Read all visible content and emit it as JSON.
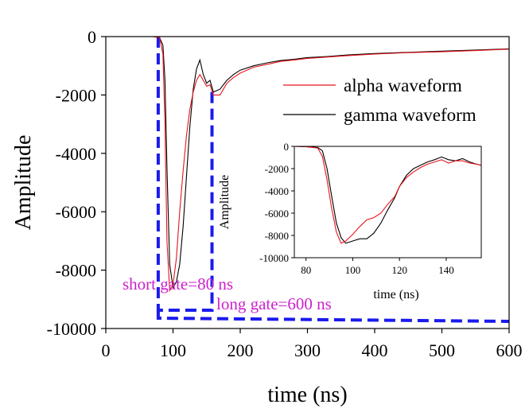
{
  "chart_data": [
    {
      "type": "line",
      "xlabel": "time (ns)",
      "ylabel": "Amplitude",
      "xlim": [
        0,
        600
      ],
      "ylim": [
        -10000,
        0
      ],
      "xticks": [
        "0",
        "100",
        "200",
        "300",
        "400",
        "500",
        "600"
      ],
      "yticks": [
        "0",
        "-2000",
        "-4000",
        "-6000",
        "-8000",
        "-10000"
      ],
      "legend": {
        "placement": "top-right",
        "entries": [
          "alpha waveform",
          "gamma waveform"
        ]
      },
      "series": [
        {
          "name": "alpha waveform",
          "color": "#e8141c",
          "x": [
            0,
            70,
            80,
            85,
            88,
            91,
            95,
            100,
            105,
            110,
            115,
            120,
            125,
            130,
            135,
            140,
            145,
            150,
            155,
            160,
            170,
            180,
            190,
            200,
            220,
            240,
            260,
            280,
            300,
            330,
            360,
            400,
            450,
            500,
            550,
            600
          ],
          "y": [
            0,
            0,
            -30,
            -600,
            -3000,
            -7000,
            -8700,
            -8500,
            -7600,
            -6000,
            -4600,
            -3400,
            -2500,
            -1900,
            -1500,
            -1300,
            -1500,
            -1700,
            -1650,
            -2000,
            -2000,
            -1600,
            -1400,
            -1250,
            -1050,
            -950,
            -850,
            -800,
            -750,
            -700,
            -650,
            -600,
            -550,
            -520,
            -480,
            -430
          ]
        },
        {
          "name": "gamma waveform",
          "color": "#000000",
          "x": [
            0,
            70,
            80,
            85,
            88,
            91,
            95,
            100,
            105,
            110,
            115,
            120,
            125,
            130,
            135,
            140,
            145,
            150,
            155,
            160,
            170,
            180,
            190,
            200,
            220,
            240,
            260,
            280,
            300,
            330,
            360,
            400,
            450,
            500,
            550,
            600
          ],
          "y": [
            0,
            0,
            -30,
            -300,
            -1500,
            -4500,
            -7800,
            -8600,
            -8400,
            -7800,
            -6500,
            -4800,
            -3100,
            -1800,
            -1100,
            -800,
            -1300,
            -1600,
            -1500,
            -1900,
            -1800,
            -1500,
            -1300,
            -1150,
            -1000,
            -900,
            -820,
            -780,
            -720,
            -680,
            -630,
            -580,
            -540,
            -500,
            -460,
            -420
          ]
        }
      ],
      "annotations": [
        "short gate=80 ns",
        "long gate=600 ns"
      ],
      "gates": [
        {
          "label": "short gate=80 ns",
          "start": 78,
          "end": 158,
          "color": "#1a1aee"
        },
        {
          "label": "long gate=600 ns",
          "start": 78,
          "end": 600,
          "color": "#1a1aee"
        }
      ]
    },
    {
      "type": "line",
      "xlabel": "time (ns)",
      "ylabel": "Amplitude",
      "xlim": [
        75,
        155
      ],
      "ylim": [
        -10000,
        0
      ],
      "xticks": [
        "80",
        "100",
        "120",
        "140"
      ],
      "yticks": [
        "0",
        "-2000",
        "-4000",
        "-6000",
        "-8000",
        "-10000"
      ],
      "series": [
        {
          "name": "alpha waveform",
          "color": "#e8141c",
          "x": [
            75,
            80,
            85,
            87,
            89,
            91,
            93,
            95,
            97,
            100,
            103,
            106,
            109,
            112,
            115,
            118,
            120,
            123,
            126,
            129,
            132,
            135,
            138,
            141,
            144,
            147,
            150,
            153,
            155
          ],
          "y": [
            0,
            -30,
            -150,
            -900,
            -3000,
            -5600,
            -7700,
            -8700,
            -8500,
            -7900,
            -7200,
            -6600,
            -6400,
            -6000,
            -5200,
            -4500,
            -3600,
            -2800,
            -2300,
            -1900,
            -1600,
            -1400,
            -1200,
            -1500,
            -1300,
            -1300,
            -1500,
            -1600,
            -1700
          ]
        },
        {
          "name": "gamma waveform",
          "color": "#000000",
          "x": [
            75,
            80,
            85,
            87,
            89,
            91,
            93,
            95,
            97,
            100,
            103,
            106,
            109,
            112,
            115,
            118,
            120,
            123,
            126,
            129,
            132,
            135,
            138,
            141,
            144,
            147,
            150,
            153,
            155
          ],
          "y": [
            0,
            -30,
            -100,
            -400,
            -2000,
            -4500,
            -6900,
            -8200,
            -8700,
            -8500,
            -8300,
            -8300,
            -7800,
            -6900,
            -5700,
            -4600,
            -3600,
            -2600,
            -2000,
            -1700,
            -1400,
            -1200,
            -950,
            -1200,
            -1300,
            -1100,
            -1400,
            -1600,
            -1700
          ]
        }
      ]
    }
  ]
}
